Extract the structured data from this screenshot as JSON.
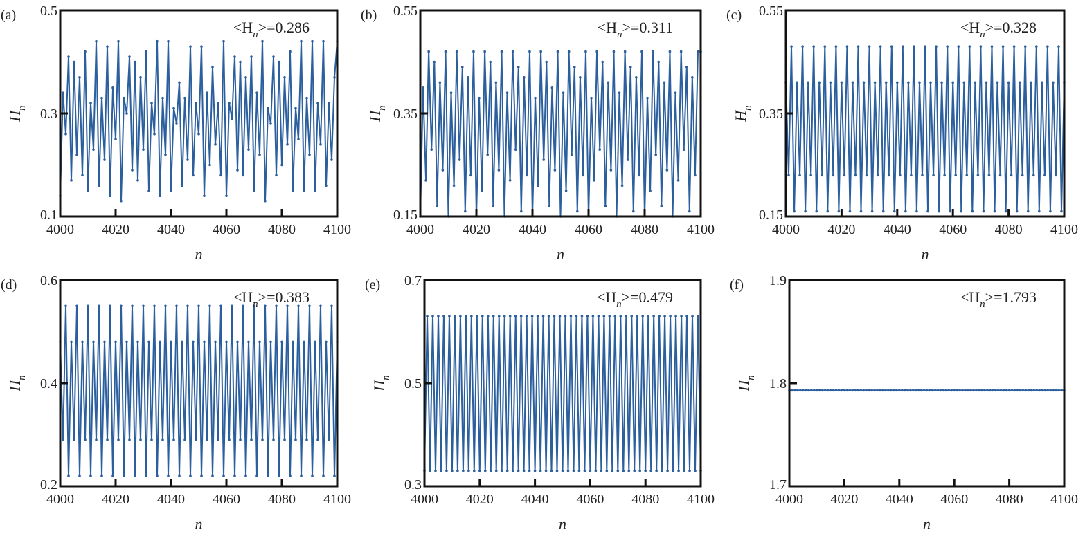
{
  "chart_data": [
    {
      "id": "a",
      "type": "line",
      "panel_label": "(a)",
      "annotation": "<Hn>=0.286",
      "annotation_prefix": "<H",
      "annotation_sub": "n",
      "annotation_suffix": ">=0.286",
      "xlabel": "n",
      "ylabel": "H",
      "ylabel_sub": "n",
      "xlim": [
        4000,
        4100
      ],
      "ylim": [
        0.1,
        0.5
      ],
      "xticks": [
        4000,
        4020,
        4040,
        4060,
        4080,
        4100
      ],
      "yticks": [
        "0.1",
        "0.3",
        "0.5"
      ],
      "ytick_values": [
        0.1,
        0.3,
        0.5
      ],
      "x_start": 4000,
      "values": [
        0.14,
        0.34,
        0.26,
        0.41,
        0.17,
        0.4,
        0.22,
        0.37,
        0.18,
        0.42,
        0.15,
        0.32,
        0.23,
        0.44,
        0.16,
        0.33,
        0.21,
        0.43,
        0.14,
        0.35,
        0.25,
        0.44,
        0.13,
        0.33,
        0.3,
        0.41,
        0.19,
        0.4,
        0.17,
        0.37,
        0.23,
        0.42,
        0.15,
        0.32,
        0.26,
        0.44,
        0.14,
        0.33,
        0.22,
        0.44,
        0.15,
        0.31,
        0.28,
        0.36,
        0.16,
        0.33,
        0.21,
        0.43,
        0.18,
        0.32,
        0.26,
        0.43,
        0.14,
        0.34,
        0.2,
        0.39,
        0.24,
        0.32,
        0.18,
        0.44,
        0.14,
        0.32,
        0.29,
        0.41,
        0.19,
        0.4,
        0.18,
        0.37,
        0.23,
        0.41,
        0.15,
        0.34,
        0.22,
        0.44,
        0.13,
        0.31,
        0.28,
        0.41,
        0.18,
        0.4,
        0.2,
        0.37,
        0.24,
        0.42,
        0.15,
        0.31,
        0.25,
        0.44,
        0.15,
        0.33,
        0.22,
        0.44,
        0.15,
        0.32,
        0.24,
        0.44,
        0.16,
        0.32,
        0.21,
        0.37,
        0.44
      ]
    },
    {
      "id": "b",
      "type": "line",
      "panel_label": "(b)",
      "annotation": "<Hn>=0.311",
      "annotation_prefix": "<H",
      "annotation_sub": "n",
      "annotation_suffix": ">=0.311",
      "xlabel": "n",
      "ylabel": "H",
      "ylabel_sub": "n",
      "xlim": [
        4000,
        4100
      ],
      "ylim": [
        0.15,
        0.55
      ],
      "xticks": [
        4000,
        4020,
        4040,
        4060,
        4080,
        4100
      ],
      "yticks": [
        "0.15",
        "0.35",
        "0.55"
      ],
      "ytick_values": [
        0.15,
        0.35,
        0.55
      ],
      "x_start": 4000,
      "values": [
        0.15,
        0.4,
        0.22,
        0.47,
        0.28,
        0.45,
        0.17,
        0.41,
        0.24,
        0.47,
        0.15,
        0.39,
        0.21,
        0.47,
        0.26,
        0.44,
        0.16,
        0.42,
        0.23,
        0.47,
        0.15,
        0.38,
        0.2,
        0.47,
        0.27,
        0.45,
        0.17,
        0.41,
        0.24,
        0.47,
        0.15,
        0.39,
        0.22,
        0.47,
        0.28,
        0.44,
        0.16,
        0.42,
        0.23,
        0.47,
        0.15,
        0.38,
        0.21,
        0.47,
        0.26,
        0.45,
        0.17,
        0.4,
        0.24,
        0.47,
        0.15,
        0.39,
        0.2,
        0.47,
        0.27,
        0.44,
        0.16,
        0.42,
        0.23,
        0.47,
        0.15,
        0.38,
        0.22,
        0.47,
        0.28,
        0.45,
        0.17,
        0.41,
        0.24,
        0.47,
        0.15,
        0.39,
        0.21,
        0.47,
        0.26,
        0.44,
        0.16,
        0.42,
        0.23,
        0.47,
        0.15,
        0.38,
        0.2,
        0.47,
        0.27,
        0.45,
        0.17,
        0.41,
        0.24,
        0.47,
        0.15,
        0.39,
        0.22,
        0.47,
        0.28,
        0.44,
        0.16,
        0.42,
        0.23,
        0.47,
        0.47
      ]
    },
    {
      "id": "c",
      "type": "line",
      "panel_label": "(c)",
      "annotation": "<Hn>=0.328",
      "annotation_prefix": "<H",
      "annotation_sub": "n",
      "annotation_suffix": ">=0.328",
      "xlabel": "n",
      "ylabel": "H",
      "ylabel_sub": "n",
      "xlim": [
        4000,
        4100
      ],
      "ylim": [
        0.15,
        0.55
      ],
      "xticks": [
        4000,
        4020,
        4040,
        4060,
        4080,
        4100
      ],
      "yticks": [
        "0.15",
        "0.35",
        "0.55"
      ],
      "ytick_values": [
        0.15,
        0.35,
        0.55
      ],
      "x_start": 4000,
      "x_end": 4100,
      "repeating_pattern": [
        0.41,
        0.23,
        0.48,
        0.16
      ]
    },
    {
      "id": "d",
      "type": "line",
      "panel_label": "(d)",
      "annotation": "<Hn>=0.383",
      "annotation_prefix": "<H",
      "annotation_sub": "n",
      "annotation_suffix": ">=0.383",
      "xlabel": "n",
      "ylabel": "H",
      "ylabel_sub": "n",
      "xlim": [
        4000,
        4100
      ],
      "ylim": [
        0.2,
        0.6
      ],
      "xticks": [
        4000,
        4020,
        4040,
        4060,
        4080,
        4100
      ],
      "yticks": [
        "0.2",
        "0.4",
        "0.6"
      ],
      "ytick_values": [
        0.2,
        0.4,
        0.6
      ],
      "x_start": 4000,
      "x_end": 4100,
      "repeating_pattern": [
        0.48,
        0.29,
        0.55,
        0.22
      ]
    },
    {
      "id": "e",
      "type": "line",
      "panel_label": "(e)",
      "annotation": "<Hn>=0.479",
      "annotation_prefix": "<H",
      "annotation_sub": "n",
      "annotation_suffix": ">=0.479",
      "xlabel": "n",
      "ylabel": "H",
      "ylabel_sub": "n",
      "xlim": [
        4000,
        4100
      ],
      "ylim": [
        0.3,
        0.7
      ],
      "xticks": [
        4000,
        4020,
        4040,
        4060,
        4080,
        4100
      ],
      "yticks": [
        "0.3",
        "0.5",
        "0.7"
      ],
      "ytick_values": [
        0.3,
        0.5,
        0.7
      ],
      "x_start": 4000,
      "x_end": 4100,
      "repeating_pattern": [
        0.33,
        0.63
      ]
    },
    {
      "id": "f",
      "type": "line",
      "panel_label": "(f)",
      "annotation": "<Hn>=1.793",
      "annotation_prefix": "<H",
      "annotation_sub": "n",
      "annotation_suffix": ">=1.793",
      "xlabel": "n",
      "ylabel": "H",
      "ylabel_sub": "n",
      "xlim": [
        4000,
        4100
      ],
      "ylim": [
        1.7,
        1.9
      ],
      "xticks": [
        4000,
        4020,
        4040,
        4060,
        4080,
        4100
      ],
      "yticks": [
        "1.7",
        "1.8",
        "1.9"
      ],
      "ytick_values": [
        1.7,
        1.8,
        1.9
      ],
      "x_start": 4000,
      "x_end": 4100,
      "repeating_pattern": [
        1.793
      ]
    }
  ],
  "colors": {
    "series": "#2c5f9e",
    "axis": "#111111"
  }
}
